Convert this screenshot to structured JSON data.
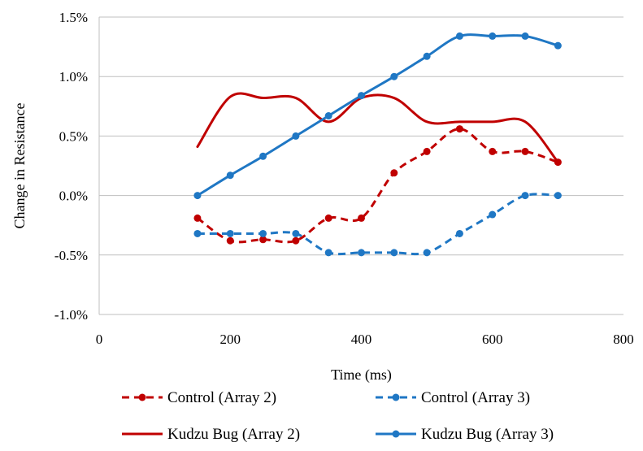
{
  "chart_data": {
    "type": "line",
    "title": "",
    "xlabel": "Time (ms)",
    "ylabel": "Change in Resistance",
    "xlim": [
      0,
      800
    ],
    "ylim": [
      -1.0,
      1.5
    ],
    "x_ticks": [
      0,
      200,
      400,
      600,
      800
    ],
    "x_tick_labels": [
      "0",
      "200",
      "400",
      "600",
      "800"
    ],
    "y_ticks": [
      -1.0,
      -0.5,
      0.0,
      0.5,
      1.0,
      1.5
    ],
    "y_tick_labels": [
      "-1.0%",
      "-0.5%",
      "0.0%",
      "0.5%",
      "1.0%",
      "1.5%"
    ],
    "grid": "horizontal",
    "legend_position": "bottom",
    "series": [
      {
        "name": "Control (Array 2)",
        "color": "#C00000",
        "style": "dashed",
        "markers": true,
        "smooth": true,
        "x": [
          150,
          200,
          250,
          300,
          350,
          400,
          450,
          500,
          550,
          600,
          650,
          700
        ],
        "y": [
          -0.19,
          -0.38,
          -0.37,
          -0.38,
          -0.19,
          -0.19,
          0.19,
          0.37,
          0.56,
          0.37,
          0.37,
          0.28
        ]
      },
      {
        "name": "Control (Array 3)",
        "color": "#1F77C4",
        "style": "dashed",
        "markers": true,
        "smooth": true,
        "x": [
          150,
          200,
          250,
          300,
          350,
          400,
          450,
          500,
          550,
          600,
          650,
          700
        ],
        "y": [
          -0.32,
          -0.32,
          -0.32,
          -0.32,
          -0.48,
          -0.48,
          -0.48,
          -0.48,
          -0.32,
          -0.16,
          0.0,
          0.0
        ]
      },
      {
        "name": "Kudzu Bug (Array 2)",
        "color": "#C00000",
        "style": "solid",
        "markers": false,
        "smooth": true,
        "x": [
          150,
          200,
          250,
          300,
          350,
          400,
          450,
          500,
          550,
          600,
          650,
          700
        ],
        "y": [
          0.41,
          0.83,
          0.82,
          0.82,
          0.62,
          0.82,
          0.82,
          0.62,
          0.62,
          0.62,
          0.62,
          0.28
        ]
      },
      {
        "name": "Kudzu Bug (Array 3)",
        "color": "#1F77C4",
        "style": "solid",
        "markers": true,
        "smooth": true,
        "x": [
          150,
          200,
          250,
          300,
          350,
          400,
          450,
          500,
          550,
          600,
          650,
          700
        ],
        "y": [
          0.0,
          0.17,
          0.33,
          0.5,
          0.67,
          0.84,
          1.0,
          1.17,
          1.34,
          1.34,
          1.34,
          1.26
        ]
      }
    ]
  }
}
